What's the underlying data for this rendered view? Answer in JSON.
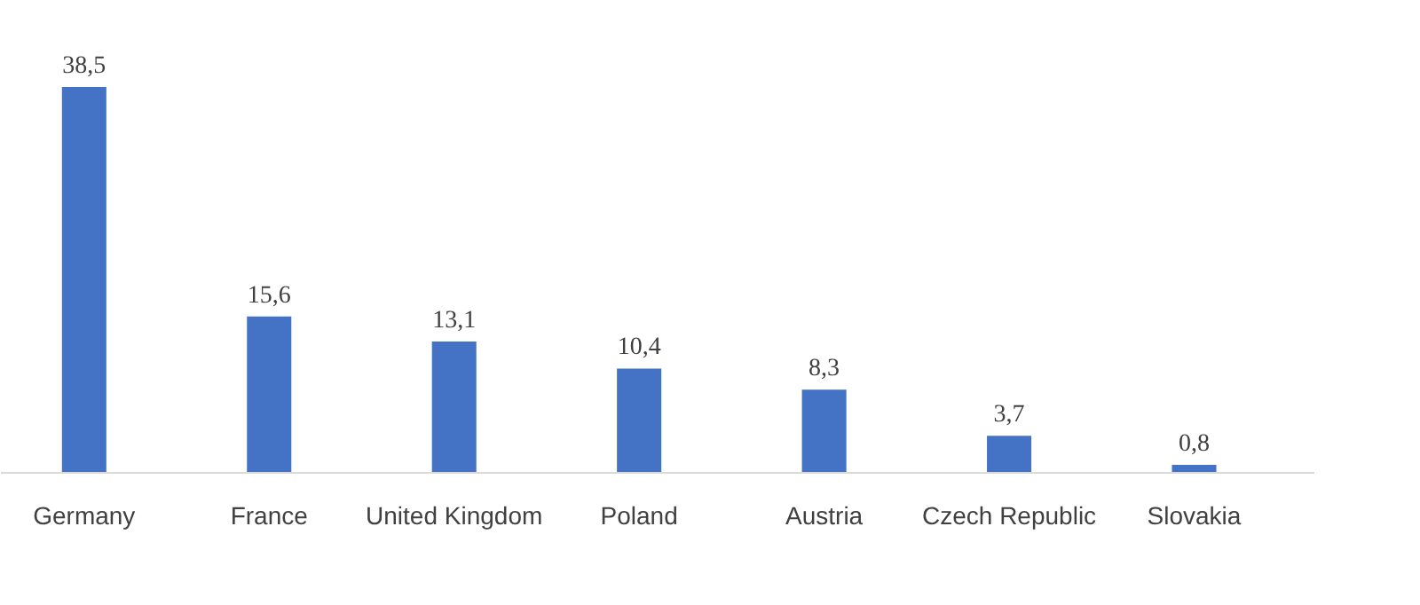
{
  "chart_data": {
    "type": "bar",
    "categories": [
      "Germany",
      "France",
      "United Kingdom",
      "Poland",
      "Austria",
      "Czech Republic",
      "Slovakia"
    ],
    "values": [
      38.5,
      15.6,
      13.1,
      10.4,
      8.3,
      3.7,
      0.8
    ],
    "value_labels": [
      "38,5",
      "15,6",
      "13,1",
      "10,4",
      "8,3",
      "3,7",
      "0,8"
    ],
    "color": "#4472c4",
    "grid": false
  }
}
